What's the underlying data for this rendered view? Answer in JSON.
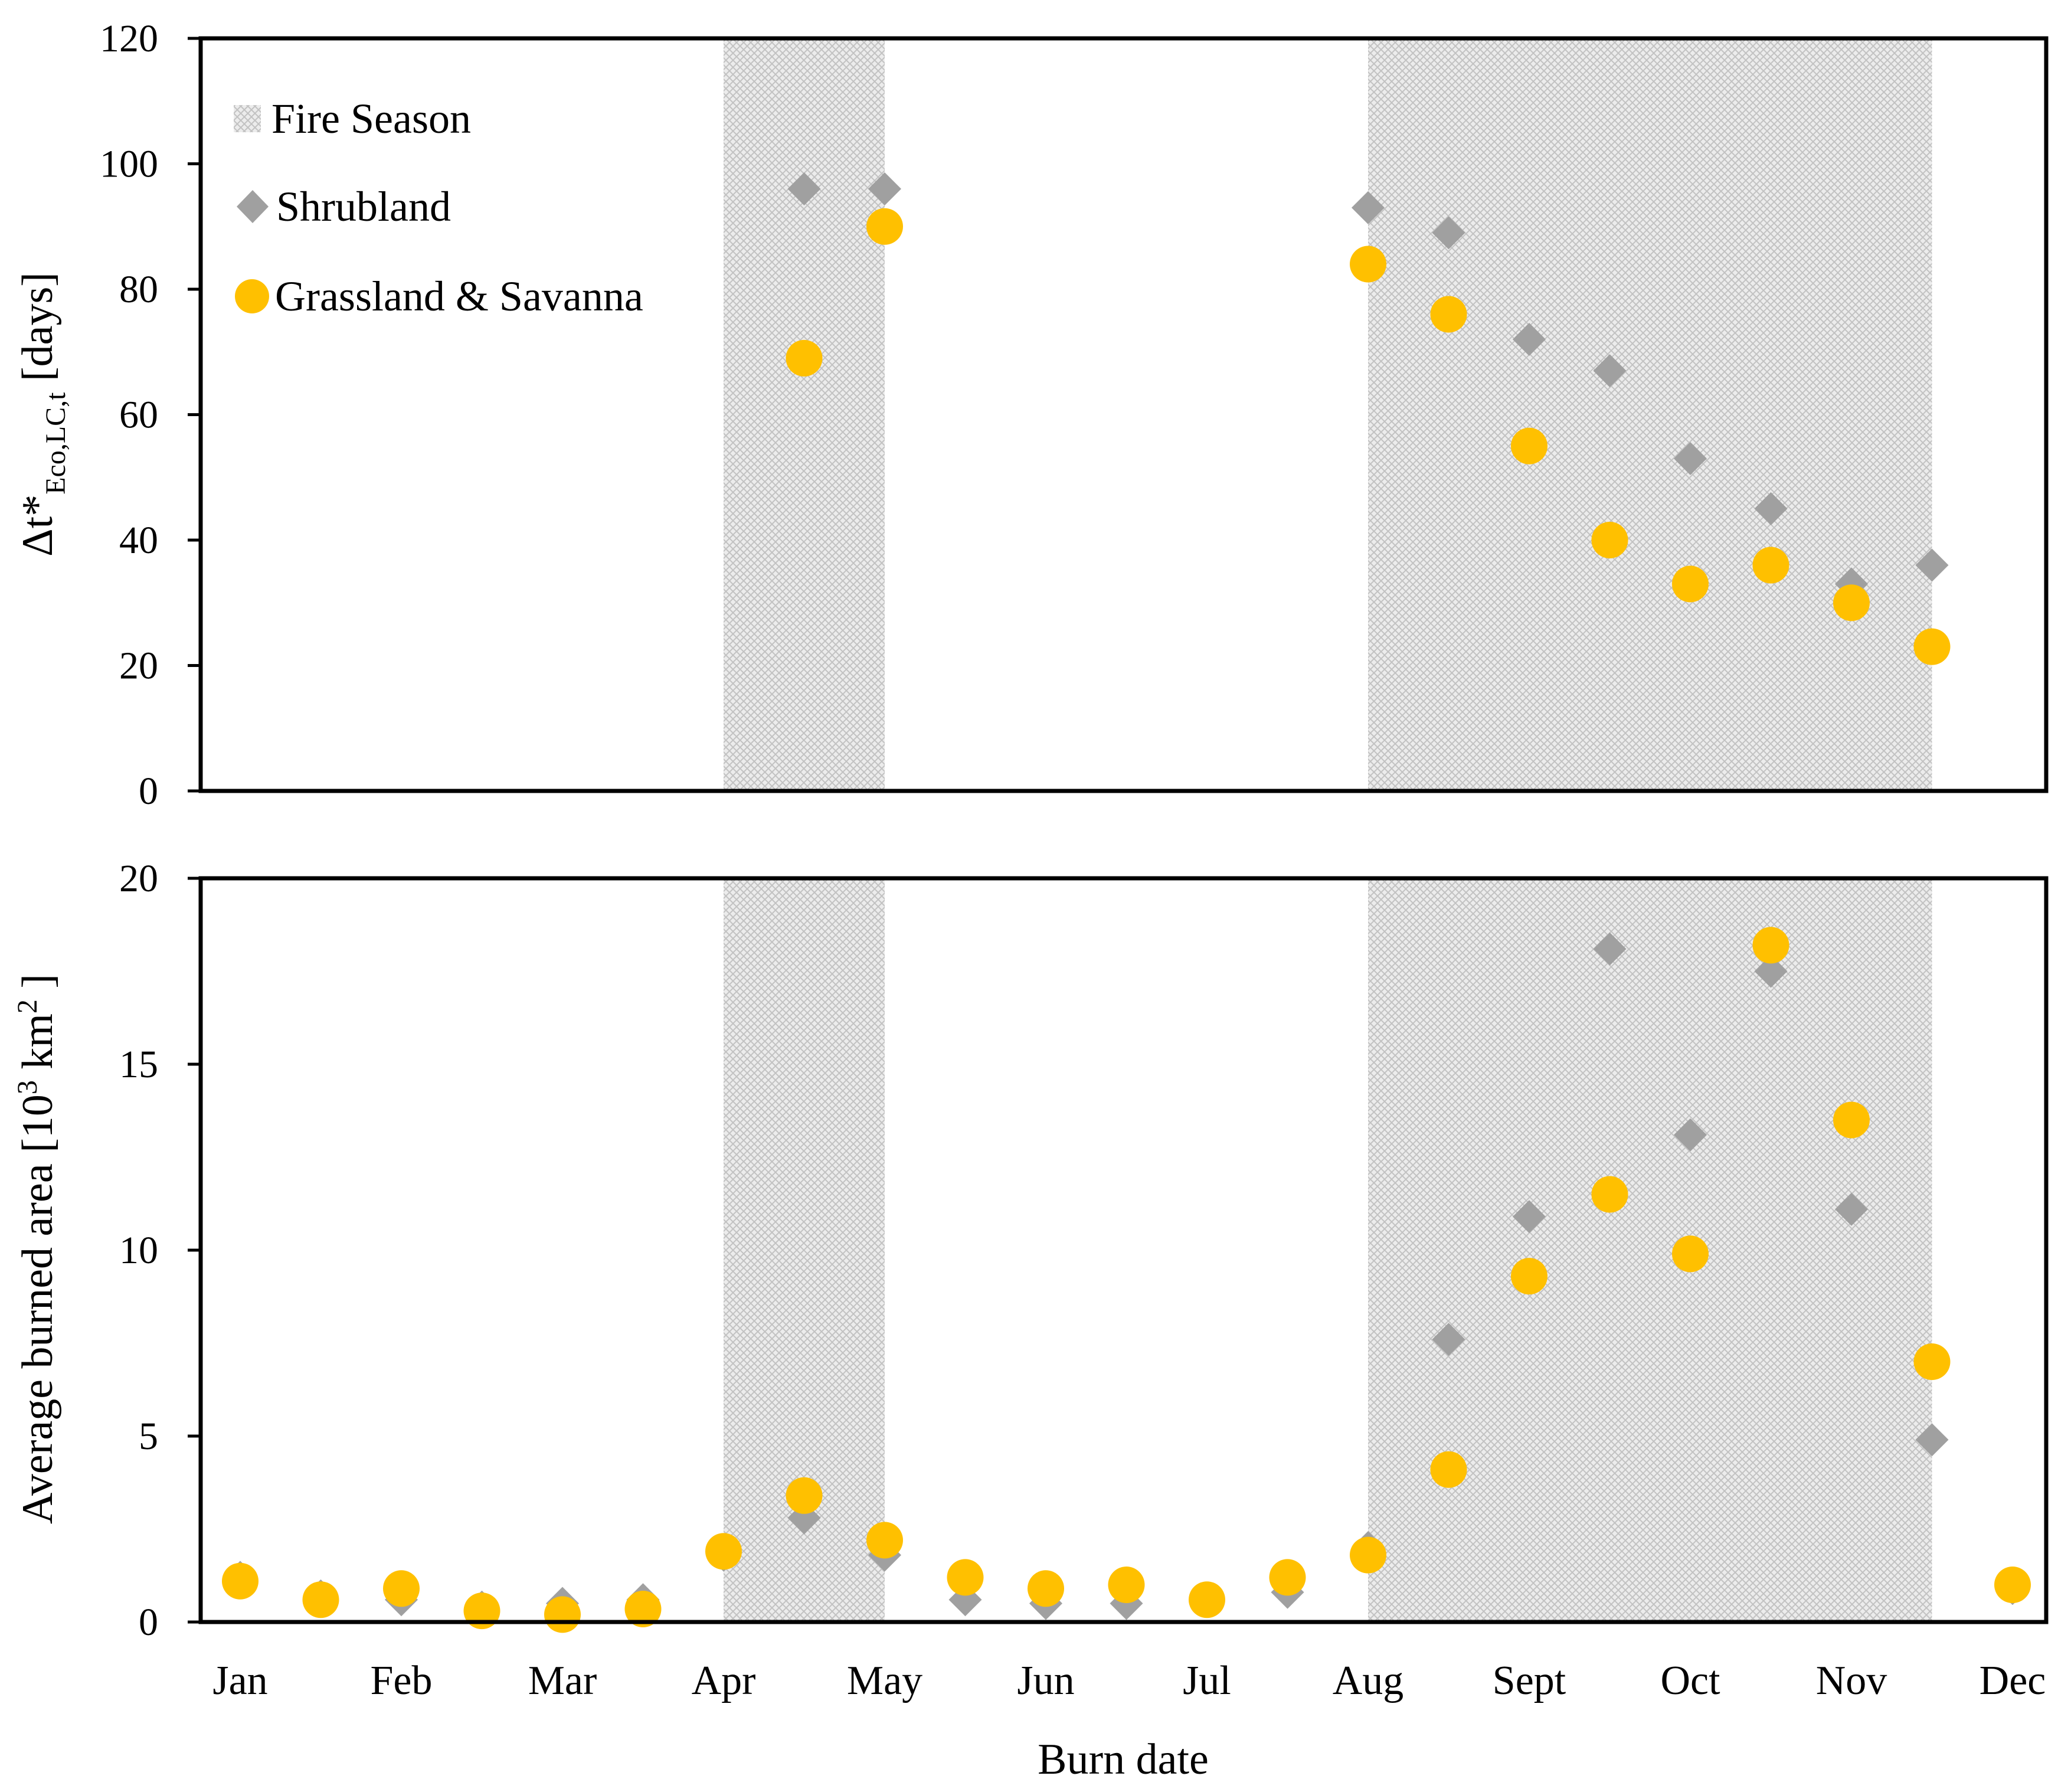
{
  "chart_data": [
    {
      "type": "scatter",
      "ylabel": "Δt*Eco,LC,t [days]",
      "ylabel_parts": {
        "main": "Δt*",
        "sub": "Eco,LC,t",
        "rest": " [days]"
      },
      "ylim": [
        0,
        120
      ],
      "yticks": [
        0,
        20,
        40,
        60,
        80,
        100,
        120
      ],
      "legend": {
        "position": "top-left",
        "entries": [
          "Fire Season",
          "Shrubland",
          "Grassland & Savanna"
        ]
      },
      "fire_season": [
        [
          6,
          8
        ],
        [
          14,
          21
        ]
      ],
      "series": [
        {
          "name": "Shrubland",
          "marker": "diamond",
          "color": "#a0a0a0",
          "x": [
            7,
            8,
            14,
            15,
            16,
            17,
            18,
            19,
            20,
            21
          ],
          "y": [
            96,
            96,
            93,
            89,
            72,
            67,
            53,
            45,
            33,
            36
          ]
        },
        {
          "name": "Grassland & Savanna",
          "marker": "circle",
          "color": "#ffc000",
          "x": [
            7,
            8,
            14,
            15,
            16,
            17,
            18,
            19,
            20,
            21
          ],
          "y": [
            69,
            90,
            84,
            76,
            55,
            40,
            33,
            36,
            30,
            23
          ]
        }
      ]
    },
    {
      "type": "scatter",
      "xlabel": "Burn date",
      "ylabel": "Average burned area [10³ km²]",
      "ylabel_parts": {
        "main": "Average burned area [10",
        "sup1": "3",
        "mid": " km",
        "sup2": "2",
        "rest": " ]"
      },
      "ylim": [
        0,
        20
      ],
      "yticks": [
        0,
        5,
        10,
        15,
        20
      ],
      "month_labels": [
        "Jan",
        "Feb",
        "Mar",
        "Apr",
        "May",
        "Jun",
        "Jul",
        "Aug",
        "Sept",
        "Oct",
        "Nov",
        "Dec"
      ],
      "fire_season": [
        [
          6,
          8
        ],
        [
          14,
          21
        ]
      ],
      "series": [
        {
          "name": "Shrubland",
          "marker": "diamond",
          "color": "#a0a0a0",
          "x": [
            0,
            1,
            2,
            3,
            4,
            5,
            6,
            7,
            8,
            9,
            10,
            11,
            12,
            13,
            14,
            15,
            16,
            17,
            18,
            19,
            20,
            21,
            22
          ],
          "y": [
            1.2,
            0.7,
            0.6,
            0.4,
            0.5,
            0.6,
            1.8,
            2.8,
            1.8,
            0.6,
            0.5,
            0.5,
            0.6,
            0.8,
            2.0,
            7.6,
            10.9,
            18.1,
            13.1,
            17.5,
            11.1,
            4.9,
            0.9
          ]
        },
        {
          "name": "Grassland & Savanna",
          "marker": "circle",
          "color": "#ffc000",
          "x": [
            0,
            1,
            2,
            3,
            4,
            5,
            6,
            7,
            8,
            9,
            10,
            11,
            12,
            13,
            14,
            15,
            16,
            17,
            18,
            19,
            20,
            21,
            22
          ],
          "y": [
            1.1,
            0.6,
            0.9,
            0.3,
            0.2,
            0.35,
            1.9,
            3.4,
            2.2,
            1.2,
            0.9,
            1.0,
            0.6,
            1.2,
            1.8,
            4.1,
            9.3,
            11.5,
            9.9,
            18.2,
            13.5,
            7.0,
            1.0
          ]
        }
      ]
    }
  ]
}
